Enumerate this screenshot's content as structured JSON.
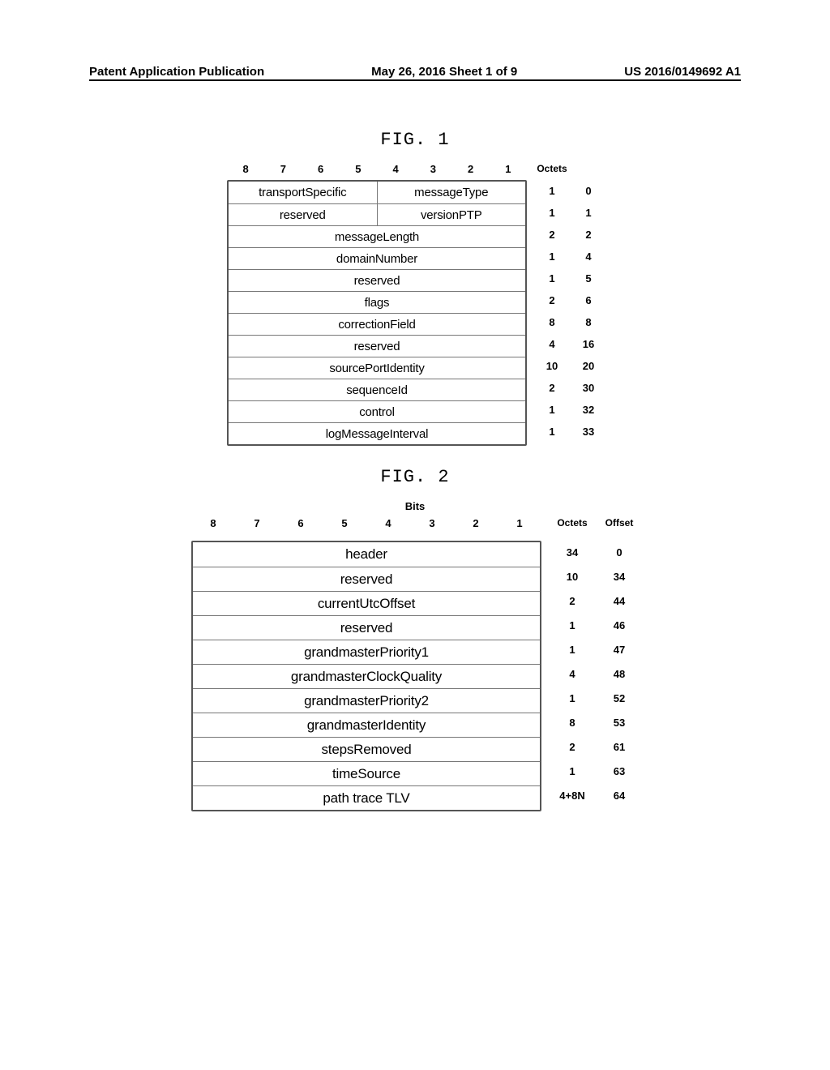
{
  "header": {
    "left": "Patent Application Publication",
    "center": "May 26, 2016  Sheet 1 of 9",
    "right": "US 2016/0149692 A1"
  },
  "fig1": {
    "title": "FIG. 1",
    "octets_header": "Octets",
    "bit_labels": [
      "8",
      "7",
      "6",
      "5",
      "4",
      "3",
      "2",
      "1"
    ],
    "rows": [
      {
        "cells": [
          {
            "text": "transportSpecific",
            "span": 4
          },
          {
            "text": "messageType",
            "span": 4
          }
        ],
        "octets": "1",
        "offset": "0"
      },
      {
        "cells": [
          {
            "text": "reserved",
            "span": 4
          },
          {
            "text": "versionPTP",
            "span": 4
          }
        ],
        "octets": "1",
        "offset": "1"
      },
      {
        "cells": [
          {
            "text": "messageLength",
            "span": 8
          }
        ],
        "octets": "2",
        "offset": "2"
      },
      {
        "cells": [
          {
            "text": "domainNumber",
            "span": 8
          }
        ],
        "octets": "1",
        "offset": "4"
      },
      {
        "cells": [
          {
            "text": "reserved",
            "span": 8
          }
        ],
        "octets": "1",
        "offset": "5"
      },
      {
        "cells": [
          {
            "text": "flags",
            "span": 8
          }
        ],
        "octets": "2",
        "offset": "6"
      },
      {
        "cells": [
          {
            "text": "correctionField",
            "span": 8
          }
        ],
        "octets": "8",
        "offset": "8"
      },
      {
        "cells": [
          {
            "text": "reserved",
            "span": 8
          }
        ],
        "octets": "4",
        "offset": "16"
      },
      {
        "cells": [
          {
            "text": "sourcePortIdentity",
            "span": 8
          }
        ],
        "octets": "10",
        "offset": "20"
      },
      {
        "cells": [
          {
            "text": "sequenceId",
            "span": 8
          }
        ],
        "octets": "2",
        "offset": "30"
      },
      {
        "cells": [
          {
            "text": "control",
            "span": 8
          }
        ],
        "octets": "1",
        "offset": "32"
      },
      {
        "cells": [
          {
            "text": "logMessageInterval",
            "span": 8
          }
        ],
        "octets": "1",
        "offset": "33"
      }
    ]
  },
  "fig2": {
    "title": "FIG. 2",
    "bits_label": "Bits",
    "octets_header": "Octets",
    "offset_header": "Offset",
    "bit_labels": [
      "8",
      "7",
      "6",
      "5",
      "4",
      "3",
      "2",
      "1"
    ],
    "rows": [
      {
        "cells": [
          {
            "text": "header",
            "span": 8
          }
        ],
        "octets": "34",
        "offset": "0"
      },
      {
        "cells": [
          {
            "text": "reserved",
            "span": 8
          }
        ],
        "octets": "10",
        "offset": "34"
      },
      {
        "cells": [
          {
            "text": "currentUtcOffset",
            "span": 8
          }
        ],
        "octets": "2",
        "offset": "44"
      },
      {
        "cells": [
          {
            "text": "reserved",
            "span": 8
          }
        ],
        "octets": "1",
        "offset": "46"
      },
      {
        "cells": [
          {
            "text": "grandmasterPriority1",
            "span": 8
          }
        ],
        "octets": "1",
        "offset": "47"
      },
      {
        "cells": [
          {
            "text": "grandmasterClockQuality",
            "span": 8
          }
        ],
        "octets": "4",
        "offset": "48"
      },
      {
        "cells": [
          {
            "text": "grandmasterPriority2",
            "span": 8
          }
        ],
        "octets": "1",
        "offset": "52"
      },
      {
        "cells": [
          {
            "text": "grandmasterIdentity",
            "span": 8
          }
        ],
        "octets": "8",
        "offset": "53"
      },
      {
        "cells": [
          {
            "text": "stepsRemoved",
            "span": 8
          }
        ],
        "octets": "2",
        "offset": "61"
      },
      {
        "cells": [
          {
            "text": "timeSource",
            "span": 8
          }
        ],
        "octets": "1",
        "offset": "63"
      },
      {
        "cells": [
          {
            "text": "path trace TLV",
            "span": 8
          }
        ],
        "octets": "4+8N",
        "offset": "64"
      }
    ]
  }
}
